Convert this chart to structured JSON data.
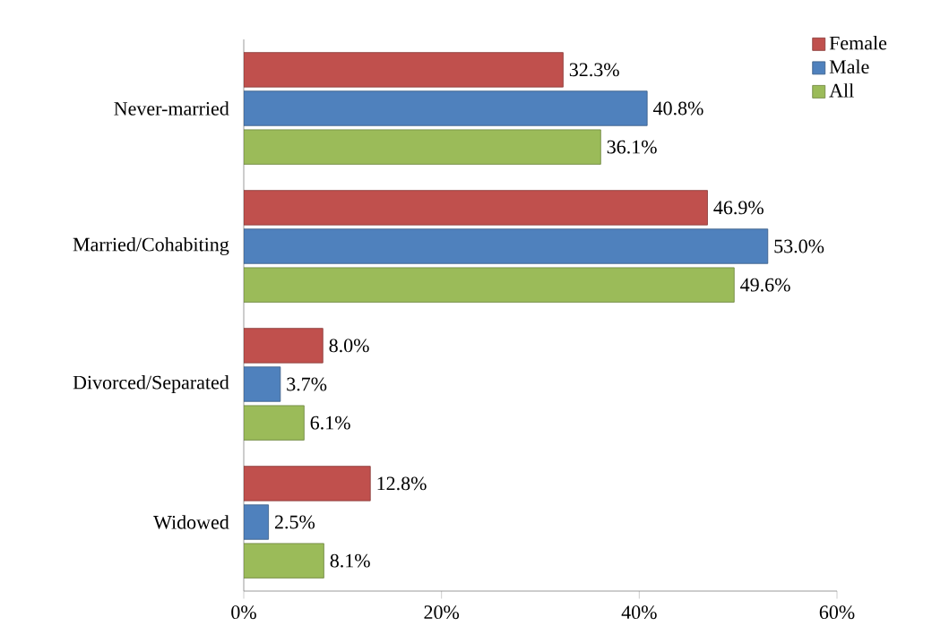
{
  "chart_data": {
    "type": "bar",
    "orientation": "horizontal",
    "categories": [
      "Never-married",
      "Married/Cohabiting",
      "Divorced/Separated",
      "Widowed"
    ],
    "series": [
      {
        "name": "Female",
        "color": "#c0504d",
        "values": [
          32.3,
          46.9,
          8.0,
          12.8
        ],
        "value_labels": [
          "32.3%",
          "46.9%",
          "8.0%",
          "12.8%"
        ]
      },
      {
        "name": "Male",
        "color": "#4f81bd",
        "values": [
          40.8,
          53.0,
          3.7,
          2.5
        ],
        "value_labels": [
          "40.8%",
          "53.0%",
          "3.7%",
          "2.5%"
        ]
      },
      {
        "name": "All",
        "color": "#9bbb59",
        "values": [
          36.1,
          49.6,
          6.1,
          8.1
        ],
        "value_labels": [
          "36.1%",
          "49.6%",
          "6.1%",
          "8.1%"
        ]
      }
    ],
    "xlim": [
      0,
      60
    ],
    "xticks": [
      {
        "value": 0,
        "label": "0%"
      },
      {
        "value": 20,
        "label": "20%"
      },
      {
        "value": 40,
        "label": "40%"
      },
      {
        "value": 60,
        "label": "60%"
      }
    ],
    "grid": false,
    "legend": "top right"
  }
}
